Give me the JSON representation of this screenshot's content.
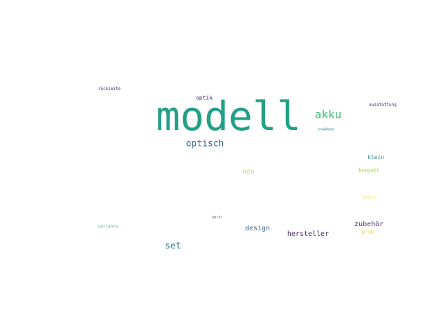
{
  "words": [
    {
      "key": "modell",
      "text": "modell",
      "color": "#22a085"
    },
    {
      "key": "akku",
      "text": "akku",
      "color": "#3cbb75"
    },
    {
      "key": "optisch",
      "text": "optisch",
      "color": "#31688e"
    },
    {
      "key": "set",
      "text": "set",
      "color": "#2f7f8e"
    },
    {
      "key": "neu",
      "text": "neu",
      "color": "#f0d52a"
    },
    {
      "key": "design",
      "text": "design",
      "color": "#3a6a8c"
    },
    {
      "key": "hersteller",
      "text": "hersteller",
      "color": "#4a2f72"
    },
    {
      "key": "zubehor",
      "text": "zubehör",
      "color": "#482a6e"
    },
    {
      "key": "optik",
      "text": "optik",
      "color": "#482a70"
    },
    {
      "key": "klein",
      "text": "klein",
      "color": "#2e8a8a"
    },
    {
      "key": "kompakt",
      "text": "kompakt",
      "color": "#9bd63b"
    },
    {
      "key": "gross",
      "text": "groß",
      "color": "#e9d82a"
    },
    {
      "key": "preis",
      "text": "preis",
      "color": "#f2dd3a"
    },
    {
      "key": "ausstattung",
      "text": "ausstattung",
      "color": "#463a7a"
    },
    {
      "key": "rueckseite",
      "text": "rückseite",
      "color": "#453279"
    },
    {
      "key": "variante",
      "text": "variante",
      "color": "#4cc08a"
    },
    {
      "key": "markt",
      "text": "markt",
      "color": "#2e6e8e"
    },
    {
      "key": "erwaehnen",
      "text": "erwähnen",
      "color": "#2f7f8e"
    }
  ]
}
